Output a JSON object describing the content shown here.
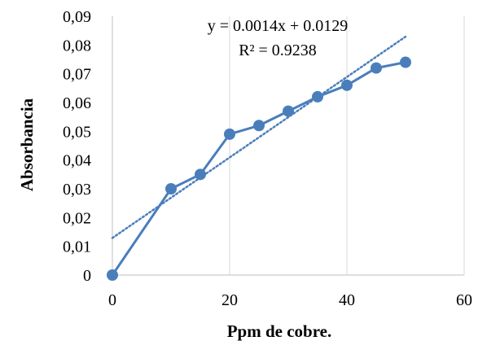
{
  "chart_data": {
    "type": "scatter",
    "title": "",
    "xlabel": "Ppm de cobre.",
    "ylabel": "Absorbancia",
    "xlim": [
      0,
      60
    ],
    "ylim": [
      0,
      0.09
    ],
    "x_ticks": [
      0,
      20,
      40,
      60
    ],
    "y_ticks": [
      0,
      0.01,
      0.02,
      0.03,
      0.04,
      0.05,
      0.06,
      0.07,
      0.08,
      0.09
    ],
    "x_tick_labels": [
      "0",
      "20",
      "40",
      "60"
    ],
    "y_tick_labels": [
      "0",
      "0,01",
      "0,02",
      "0,03",
      "0,04",
      "0,05",
      "0,06",
      "0,07",
      "0,08",
      "0,09"
    ],
    "vertical_gridlines": true,
    "horizontal_gridlines": false,
    "series": [
      {
        "x": [
          0,
          10,
          15,
          20,
          25,
          30,
          35,
          40,
          45,
          50
        ],
        "y": [
          0,
          0.03,
          0.035,
          0.049,
          0.052,
          0.057,
          0.062,
          0.066,
          0.072,
          0.074
        ],
        "style": "line-with-markers",
        "color": "#4a7ebb"
      }
    ],
    "trendline": {
      "type": "linear",
      "slope": 0.0014,
      "intercept": 0.0129,
      "x_range": [
        0,
        50
      ],
      "style": "dotted",
      "color": "#4a7ebb",
      "equation_label": "y = 0.0014x + 0.0129",
      "r2_label": "R² = 0.9238"
    }
  }
}
